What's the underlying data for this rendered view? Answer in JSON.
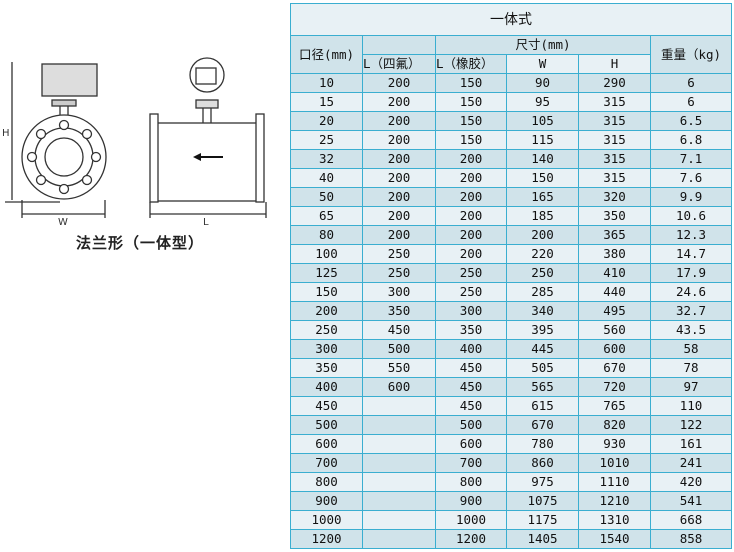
{
  "drawing": {
    "label_h": "H",
    "label_w": "W",
    "label_l": "L",
    "caption": "法兰形（一体型）"
  },
  "table": {
    "title": "一体式",
    "headers": {
      "diameter": "口径(mm)",
      "size": "尺寸(mm)",
      "weight": "重量（kg)",
      "l_ptfe": "L（四氟）",
      "l_rubber": "L（橡胶）",
      "w": "W",
      "h": "H"
    },
    "rows": [
      [
        "10",
        "200",
        "150",
        "90",
        "290",
        "6"
      ],
      [
        "15",
        "200",
        "150",
        "95",
        "315",
        "6"
      ],
      [
        "20",
        "200",
        "150",
        "105",
        "315",
        "6.5"
      ],
      [
        "25",
        "200",
        "150",
        "115",
        "315",
        "6.8"
      ],
      [
        "32",
        "200",
        "200",
        "140",
        "315",
        "7.1"
      ],
      [
        "40",
        "200",
        "200",
        "150",
        "315",
        "7.6"
      ],
      [
        "50",
        "200",
        "200",
        "165",
        "320",
        "9.9"
      ],
      [
        "65",
        "200",
        "200",
        "185",
        "350",
        "10.6"
      ],
      [
        "80",
        "200",
        "200",
        "200",
        "365",
        "12.3"
      ],
      [
        "100",
        "250",
        "200",
        "220",
        "380",
        "14.7"
      ],
      [
        "125",
        "250",
        "250",
        "250",
        "410",
        "17.9"
      ],
      [
        "150",
        "300",
        "250",
        "285",
        "440",
        "24.6"
      ],
      [
        "200",
        "350",
        "300",
        "340",
        "495",
        "32.7"
      ],
      [
        "250",
        "450",
        "350",
        "395",
        "560",
        "43.5"
      ],
      [
        "300",
        "500",
        "400",
        "445",
        "600",
        "58"
      ],
      [
        "350",
        "550",
        "450",
        "505",
        "670",
        "78"
      ],
      [
        "400",
        "600",
        "450",
        "565",
        "720",
        "97"
      ],
      [
        "450",
        "",
        "450",
        "615",
        "765",
        "110"
      ],
      [
        "500",
        "",
        "500",
        "670",
        "820",
        "122"
      ],
      [
        "600",
        "",
        "600",
        "780",
        "930",
        "161"
      ],
      [
        "700",
        "",
        "700",
        "860",
        "1010",
        "241"
      ],
      [
        "800",
        "",
        "800",
        "975",
        "1110",
        "420"
      ],
      [
        "900",
        "",
        "900",
        "1075",
        "1210",
        "541"
      ],
      [
        "1000",
        "",
        "1000",
        "1175",
        "1310",
        "668"
      ],
      [
        "1200",
        "",
        "1200",
        "1405",
        "1540",
        "858"
      ]
    ]
  }
}
